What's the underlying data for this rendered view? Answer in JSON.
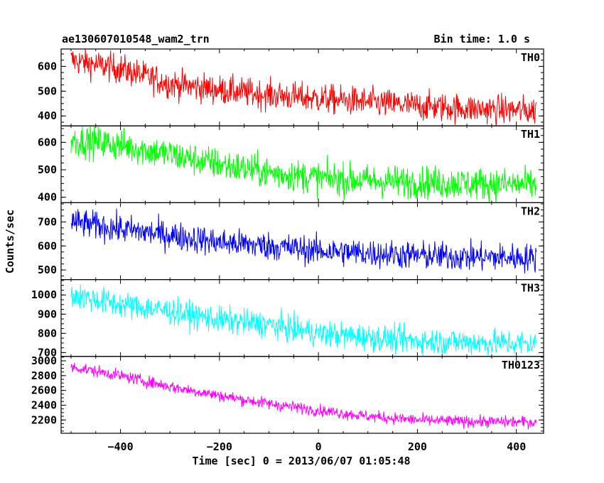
{
  "header": {
    "title": "ae130607010548_wam2_trn",
    "bin_time": "Bin time: 1.0 s"
  },
  "chart_data": {
    "type": "line",
    "title": "ae130607010548_wam2_trn",
    "xlabel": "Time [sec] 0 = 2013/06/07 01:05:48",
    "ylabel": "Counts/sec",
    "xlim": [
      -520,
      455
    ],
    "x_range": [
      -500,
      440
    ],
    "x_ticks": [
      -400,
      -200,
      0,
      200,
      400
    ],
    "x_tick_labels": [
      "−400",
      "−200",
      "0",
      "200",
      "400"
    ],
    "panels": [
      {
        "name": "TH0",
        "color": "#ff0000",
        "ylim": [
          360,
          670
        ],
        "y_ticks": [
          400,
          500,
          600
        ],
        "y_tick_labels": [
          "400",
          "500",
          "600"
        ],
        "trend": [
          [
            -500,
            625
          ],
          [
            -400,
            590
          ],
          [
            -300,
            530
          ],
          [
            -200,
            505
          ],
          [
            -100,
            485
          ],
          [
            0,
            470
          ],
          [
            100,
            455
          ],
          [
            200,
            440
          ],
          [
            300,
            430
          ],
          [
            440,
            420
          ]
        ],
        "noise": 30
      },
      {
        "name": "TH1",
        "color": "#00ff00",
        "ylim": [
          380,
          660
        ],
        "y_ticks": [
          400,
          500,
          600
        ],
        "y_tick_labels": [
          "400",
          "500",
          "600"
        ],
        "trend": [
          [
            -500,
            610
          ],
          [
            -400,
            590
          ],
          [
            -300,
            555
          ],
          [
            -200,
            520
          ],
          [
            -100,
            490
          ],
          [
            0,
            470
          ],
          [
            100,
            460
          ],
          [
            200,
            455
          ],
          [
            300,
            450
          ],
          [
            440,
            445
          ]
        ],
        "noise": 30
      },
      {
        "name": "TH2",
        "color": "#0000ff",
        "ylim": [
          460,
          780
        ],
        "y_ticks": [
          500,
          600,
          700
        ],
        "y_tick_labels": [
          "500",
          "600",
          "700"
        ],
        "trend": [
          [
            -500,
            700
          ],
          [
            -400,
            670
          ],
          [
            -300,
            645
          ],
          [
            -200,
            615
          ],
          [
            -100,
            600
          ],
          [
            0,
            580
          ],
          [
            100,
            570
          ],
          [
            200,
            560
          ],
          [
            300,
            555
          ],
          [
            440,
            550
          ]
        ],
        "noise": 30
      },
      {
        "name": "TH3",
        "color": "#00ffff",
        "ylim": [
          680,
          1080
        ],
        "y_ticks": [
          700,
          800,
          900,
          1000
        ],
        "y_tick_labels": [
          "700",
          "800",
          "900",
          "1000"
        ],
        "trend": [
          [
            -500,
            1000
          ],
          [
            -400,
            950
          ],
          [
            -300,
            915
          ],
          [
            -200,
            870
          ],
          [
            -100,
            845
          ],
          [
            0,
            800
          ],
          [
            100,
            780
          ],
          [
            200,
            760
          ],
          [
            300,
            755
          ],
          [
            440,
            745
          ]
        ],
        "noise": 35
      },
      {
        "name": "TH0123",
        "color": "#ff00ff",
        "ylim": [
          2020,
          3060
        ],
        "y_ticks": [
          2200,
          2400,
          2600,
          2800,
          3000
        ],
        "y_tick_labels": [
          "2200",
          "2400",
          "2600",
          "2800",
          "3000"
        ],
        "trend": [
          [
            -500,
            2920
          ],
          [
            -400,
            2800
          ],
          [
            -300,
            2650
          ],
          [
            -200,
            2530
          ],
          [
            -100,
            2420
          ],
          [
            0,
            2330
          ],
          [
            100,
            2250
          ],
          [
            200,
            2200
          ],
          [
            300,
            2180
          ],
          [
            440,
            2170
          ]
        ],
        "noise": 40
      }
    ]
  }
}
